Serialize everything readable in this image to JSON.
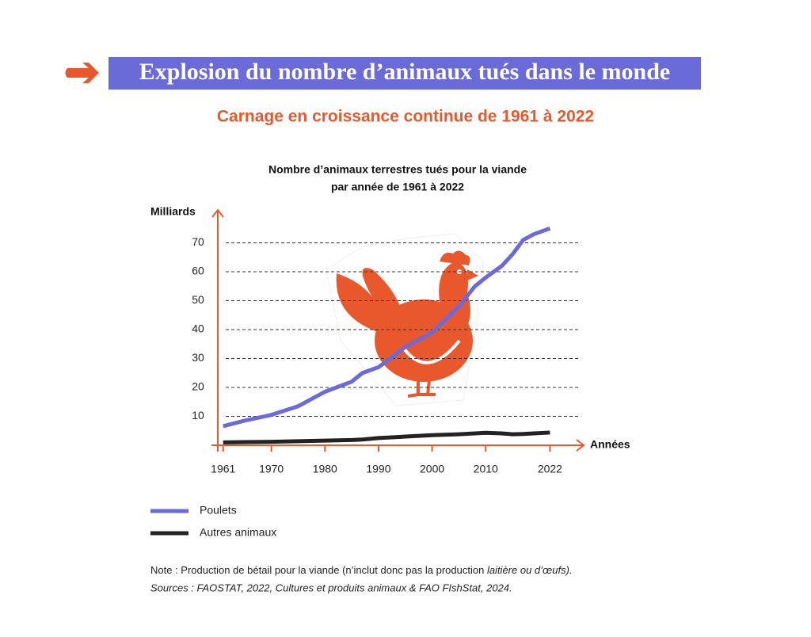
{
  "chart_data": {
    "type": "line",
    "title": "Explosion du nombre d’animaux tués dans le monde",
    "subtitle": "Carnage en croissance continue de 1961 à 2022",
    "chart_title": [
      "Nombre d’animaux terrestres tués pour la viande",
      "par année de 1961 à 2022"
    ],
    "y_label": "Milliards",
    "x_label": "Années",
    "x": [
      1961,
      1965,
      1970,
      1975,
      1980,
      1985,
      1987,
      1990,
      1995,
      2000,
      2005,
      2008,
      2010,
      2013,
      2015,
      2017,
      2019,
      2022
    ],
    "series": [
      {
        "name": "Poulets",
        "color": "#6a6ad9",
        "values": [
          6.6,
          8.5,
          10.5,
          13.5,
          18.5,
          22,
          25,
          27,
          34,
          39,
          48,
          55,
          58,
          62,
          66,
          71,
          73,
          75
        ]
      },
      {
        "name": "Autres animaux",
        "color": "#222222",
        "values": [
          1.0,
          1.1,
          1.2,
          1.4,
          1.6,
          1.8,
          2.0,
          2.5,
          3.0,
          3.5,
          3.8,
          4.1,
          4.3,
          4.1,
          3.8,
          3.9,
          4.1,
          4.4
        ]
      }
    ],
    "xlim": [
      1960,
      2028
    ],
    "ylim": [
      0,
      80
    ],
    "xticks": [
      1961,
      1970,
      1980,
      1990,
      2000,
      2010,
      2022
    ],
    "yticks": [
      10,
      20,
      30,
      40,
      50,
      60,
      70
    ],
    "grid": true,
    "note": {
      "text": "Note : Production de bétail pour la viande (n’inclut donc pas la production ",
      "italic": "laitière ou d’œufs).",
      "sources": "Sources : FAOSTAT, 2022, Cultures et produits animaux & FAO FIshStat, 2024."
    }
  }
}
